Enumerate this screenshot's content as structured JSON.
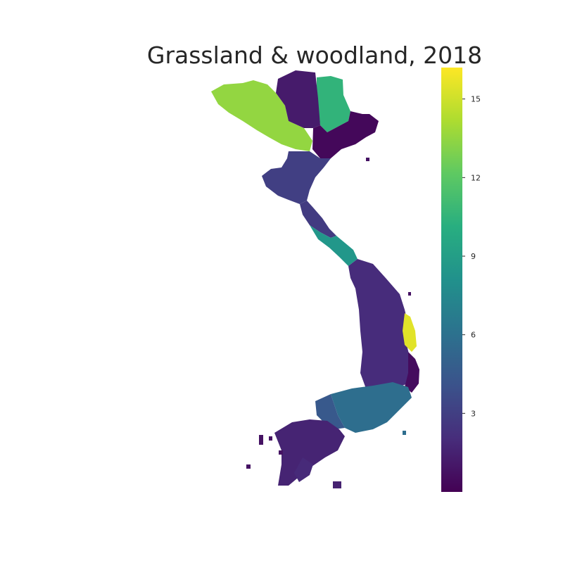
{
  "chart_data": {
    "type": "heatmap",
    "title": "Grassland & woodland, 2018",
    "subject": "Vietnam provinces",
    "colormap": "viridis",
    "colorbar": {
      "min": 0,
      "max": 16.2,
      "ticks": [
        3,
        6,
        9,
        12,
        15
      ],
      "tick_labels": [
        "3",
        "6",
        "9",
        "12",
        "15"
      ],
      "position": "right"
    },
    "regions": [
      {
        "region": "northwest-highlands",
        "value": 13.5
      },
      {
        "region": "northeast-upper",
        "value": 10.5
      },
      {
        "region": "north-central-hills",
        "value": 1.2
      },
      {
        "region": "northeast-delta",
        "value": 0.3
      },
      {
        "region": "red-river-delta",
        "value": 3.0
      },
      {
        "region": "north-central-coast",
        "value": 2.8
      },
      {
        "region": "central-coast-band",
        "value": 8.5
      },
      {
        "region": "central-highlands",
        "value": 2.0
      },
      {
        "region": "south-central-coast-peak",
        "value": 15.5
      },
      {
        "region": "south-central-coast",
        "value": 0.5
      },
      {
        "region": "southeast",
        "value": 5.8
      },
      {
        "region": "southeast-west",
        "value": 4.5
      },
      {
        "region": "mekong-delta",
        "value": 1.6
      },
      {
        "region": "mekong-delta-south",
        "value": 1.9
      }
    ]
  }
}
